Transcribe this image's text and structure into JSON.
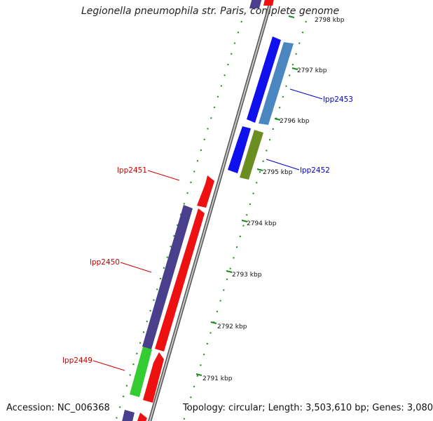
{
  "title": "Legionella pneumophila str. Paris, complete genome",
  "accession_text": "Accession: NC_006368",
  "summary_text": "Topology: circular; Length: 3,503,610 bp; Genes: 3,080",
  "ruler": {
    "ticks": [
      {
        "label": "2798 kbp"
      },
      {
        "label": "2797 kbp"
      },
      {
        "label": "2796 kbp"
      },
      {
        "label": "2795 kbp"
      },
      {
        "label": "2794 kbp"
      },
      {
        "label": "2793 kbp"
      },
      {
        "label": "2792 kbp"
      },
      {
        "label": "2791 kbp"
      }
    ]
  },
  "gene_labels": [
    {
      "text": "lpp2453",
      "color": "#0000cc"
    },
    {
      "text": "lpp2452",
      "color": "#0000cc"
    },
    {
      "text": "lpp2451",
      "color": "#cc0000"
    },
    {
      "text": "lpp2450",
      "color": "#cc0000"
    },
    {
      "text": "lpp2449",
      "color": "#cc0000"
    }
  ],
  "colors": {
    "forward_blue": "#1010ee",
    "steel_blue": "#4a86c0",
    "olive": "#6b8e23",
    "red": "#ee1111",
    "dark_purple": "#4a3f8c",
    "green": "#33cc33",
    "backbone": "#7a7a7a",
    "tick_green": "#1a8a1a"
  }
}
